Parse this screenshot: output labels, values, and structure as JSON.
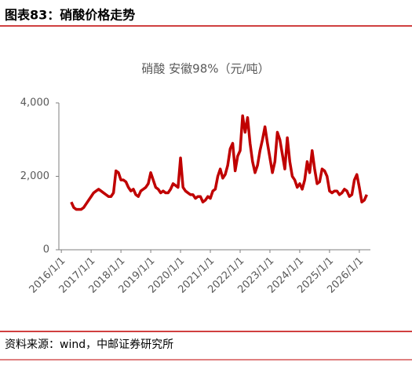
{
  "header": {
    "title": "图表83：硝酸价格走势"
  },
  "chart_data": {
    "type": "line",
    "title": "硝酸 安徽98%（元/吨）",
    "x": [
      "2016/5/1",
      "2016/6/1",
      "2016/7/1",
      "2016/8/1",
      "2016/9/1",
      "2016/10/1",
      "2016/11/1",
      "2016/12/1",
      "2017/1/1",
      "2017/2/1",
      "2017/3/1",
      "2017/4/1",
      "2017/5/1",
      "2017/6/1",
      "2017/7/1",
      "2017/8/1",
      "2017/9/1",
      "2017/10/1",
      "2017/11/1",
      "2017/12/1",
      "2018/1/1",
      "2018/2/1",
      "2018/3/1",
      "2018/4/1",
      "2018/5/1",
      "2018/6/1",
      "2018/7/1",
      "2018/8/1",
      "2018/9/1",
      "2018/10/1",
      "2018/11/1",
      "2018/12/1",
      "2019/1/1",
      "2019/2/1",
      "2019/3/1",
      "2019/4/1",
      "2019/5/1",
      "2019/6/1",
      "2019/7/1",
      "2019/8/1",
      "2019/9/1",
      "2019/10/1",
      "2019/11/1",
      "2019/12/1",
      "2020/1/1",
      "2020/2/1",
      "2020/3/1",
      "2020/4/1",
      "2020/5/1",
      "2020/6/1",
      "2020/7/1",
      "2020/8/1",
      "2020/9/1",
      "2020/10/1",
      "2020/11/1",
      "2020/12/1",
      "2021/1/1",
      "2021/2/1",
      "2021/3/1",
      "2021/4/1",
      "2021/5/1",
      "2021/6/1",
      "2021/7/1",
      "2021/8/1",
      "2021/9/1",
      "2021/10/1",
      "2021/11/1",
      "2021/12/1",
      "2022/1/1",
      "2022/2/1",
      "2022/3/1",
      "2022/4/1",
      "2022/5/1",
      "2022/6/1",
      "2022/7/1",
      "2022/8/1",
      "2022/9/1",
      "2022/10/1",
      "2022/11/1",
      "2022/12/1",
      "2023/1/1",
      "2023/2/1",
      "2023/3/1",
      "2023/4/1",
      "2023/5/1",
      "2023/6/1",
      "2023/7/1",
      "2023/8/1",
      "2023/9/1",
      "2023/10/1",
      "2023/11/1",
      "2023/12/1",
      "2024/1/1",
      "2024/2/1",
      "2024/3/1",
      "2024/4/1",
      "2024/5/1",
      "2024/6/1",
      "2024/7/1",
      "2024/8/1",
      "2024/9/1",
      "2024/10/1",
      "2024/11/1",
      "2024/12/1",
      "2025/1/1",
      "2025/2/1",
      "2025/3/1",
      "2025/4/1",
      "2025/5/1",
      "2025/6/1",
      "2025/7/1",
      "2025/8/1",
      "2025/9/1",
      "2025/10/1",
      "2025/11/1",
      "2025/12/1",
      "2026/1/1",
      "2026/2/1",
      "2026/3/1",
      "2026/4/1"
    ],
    "series": [
      {
        "name": "硝酸 安徽98%",
        "color": "#c00000",
        "values": [
          1300,
          1150,
          1100,
          1100,
          1100,
          1150,
          1250,
          1350,
          1450,
          1550,
          1600,
          1650,
          1600,
          1550,
          1500,
          1450,
          1450,
          1550,
          2150,
          2100,
          1900,
          1900,
          1850,
          1700,
          1600,
          1650,
          1500,
          1450,
          1600,
          1650,
          1700,
          1800,
          2100,
          1900,
          1700,
          1650,
          1550,
          1600,
          1550,
          1550,
          1650,
          1800,
          1750,
          1700,
          2500,
          1700,
          1600,
          1550,
          1500,
          1500,
          1400,
          1450,
          1450,
          1300,
          1350,
          1450,
          1400,
          1600,
          1650,
          2000,
          2200,
          1950,
          2050,
          2300,
          2750,
          2900,
          2150,
          2550,
          2700,
          3650,
          3200,
          3600,
          2900,
          2400,
          2100,
          2300,
          2700,
          3000,
          3350,
          2900,
          2500,
          2100,
          2400,
          3200,
          3000,
          2600,
          2200,
          3050,
          2400,
          2000,
          1900,
          1700,
          1800,
          1650,
          1900,
          2400,
          2100,
          2700,
          2200,
          1800,
          1850,
          2200,
          2150,
          2000,
          1600,
          1550,
          1600,
          1600,
          1500,
          1550,
          1650,
          1600,
          1450,
          1500,
          1900,
          2050,
          1700,
          1300,
          1350,
          1500
        ]
      }
    ],
    "xlim": [
      "2015/12/1",
      "2026/5/15"
    ],
    "xticks": [
      "2016/1/1",
      "2017/1/1",
      "2018/1/1",
      "2019/1/1",
      "2020/1/1",
      "2021/1/1",
      "2022/1/1",
      "2023/1/1",
      "2024/1/1",
      "2025/1/1",
      "2026/1/1"
    ],
    "ylim": [
      0,
      4000
    ],
    "yticks": [
      0,
      {
        "value": 2000,
        "label": "2,000"
      },
      {
        "value": 4000,
        "label": "4,000"
      }
    ],
    "grid": false
  },
  "footer": {
    "source": "资料来源：wind，中邮证券研究所"
  }
}
